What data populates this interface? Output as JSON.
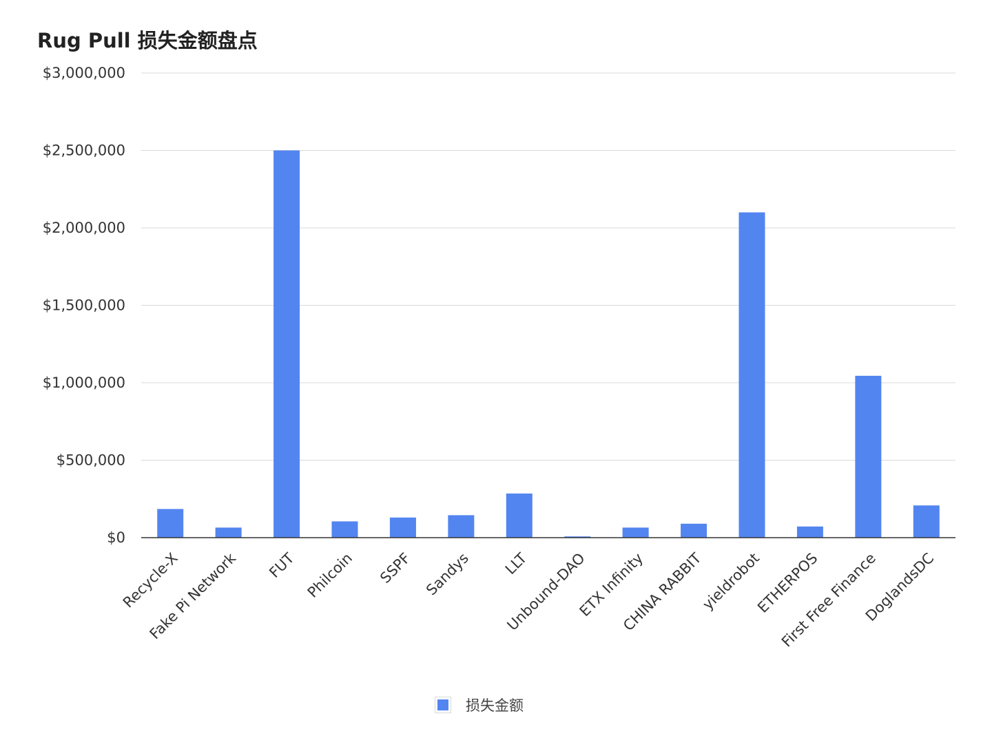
{
  "chart_data": {
    "type": "bar",
    "title": "Rug Pull 损失金额盘点",
    "xlabel": "",
    "ylabel": "",
    "categories": [
      "Recycle-X",
      "Fake Pi Network",
      "FUT",
      "Philcoin",
      "SSPF",
      "Sandys",
      "LLT",
      "Unbound-DAO",
      "ETX Infinity",
      "CHINA RABBIT",
      "yieldrobot",
      "ETHERPOS",
      "First Free Finance",
      "DoglandsDC"
    ],
    "series": [
      {
        "name": "损失金额",
        "color": "#5385f0",
        "values": [
          185000,
          65000,
          2500000,
          105000,
          130000,
          145000,
          285000,
          8000,
          65000,
          90000,
          2100000,
          72000,
          1045000,
          208000
        ]
      }
    ],
    "ylim": [
      0,
      3000000
    ],
    "yticks": [
      0,
      500000,
      1000000,
      1500000,
      2000000,
      2500000,
      3000000
    ],
    "ytick_labels": [
      "$0",
      "$500,000",
      "$1,000,000",
      "$1,500,000",
      "$2,000,000",
      "$2,500,000",
      "$3,000,000"
    ],
    "grid": true,
    "legend_position": "bottom"
  },
  "legend": {
    "label": "损失金额"
  }
}
